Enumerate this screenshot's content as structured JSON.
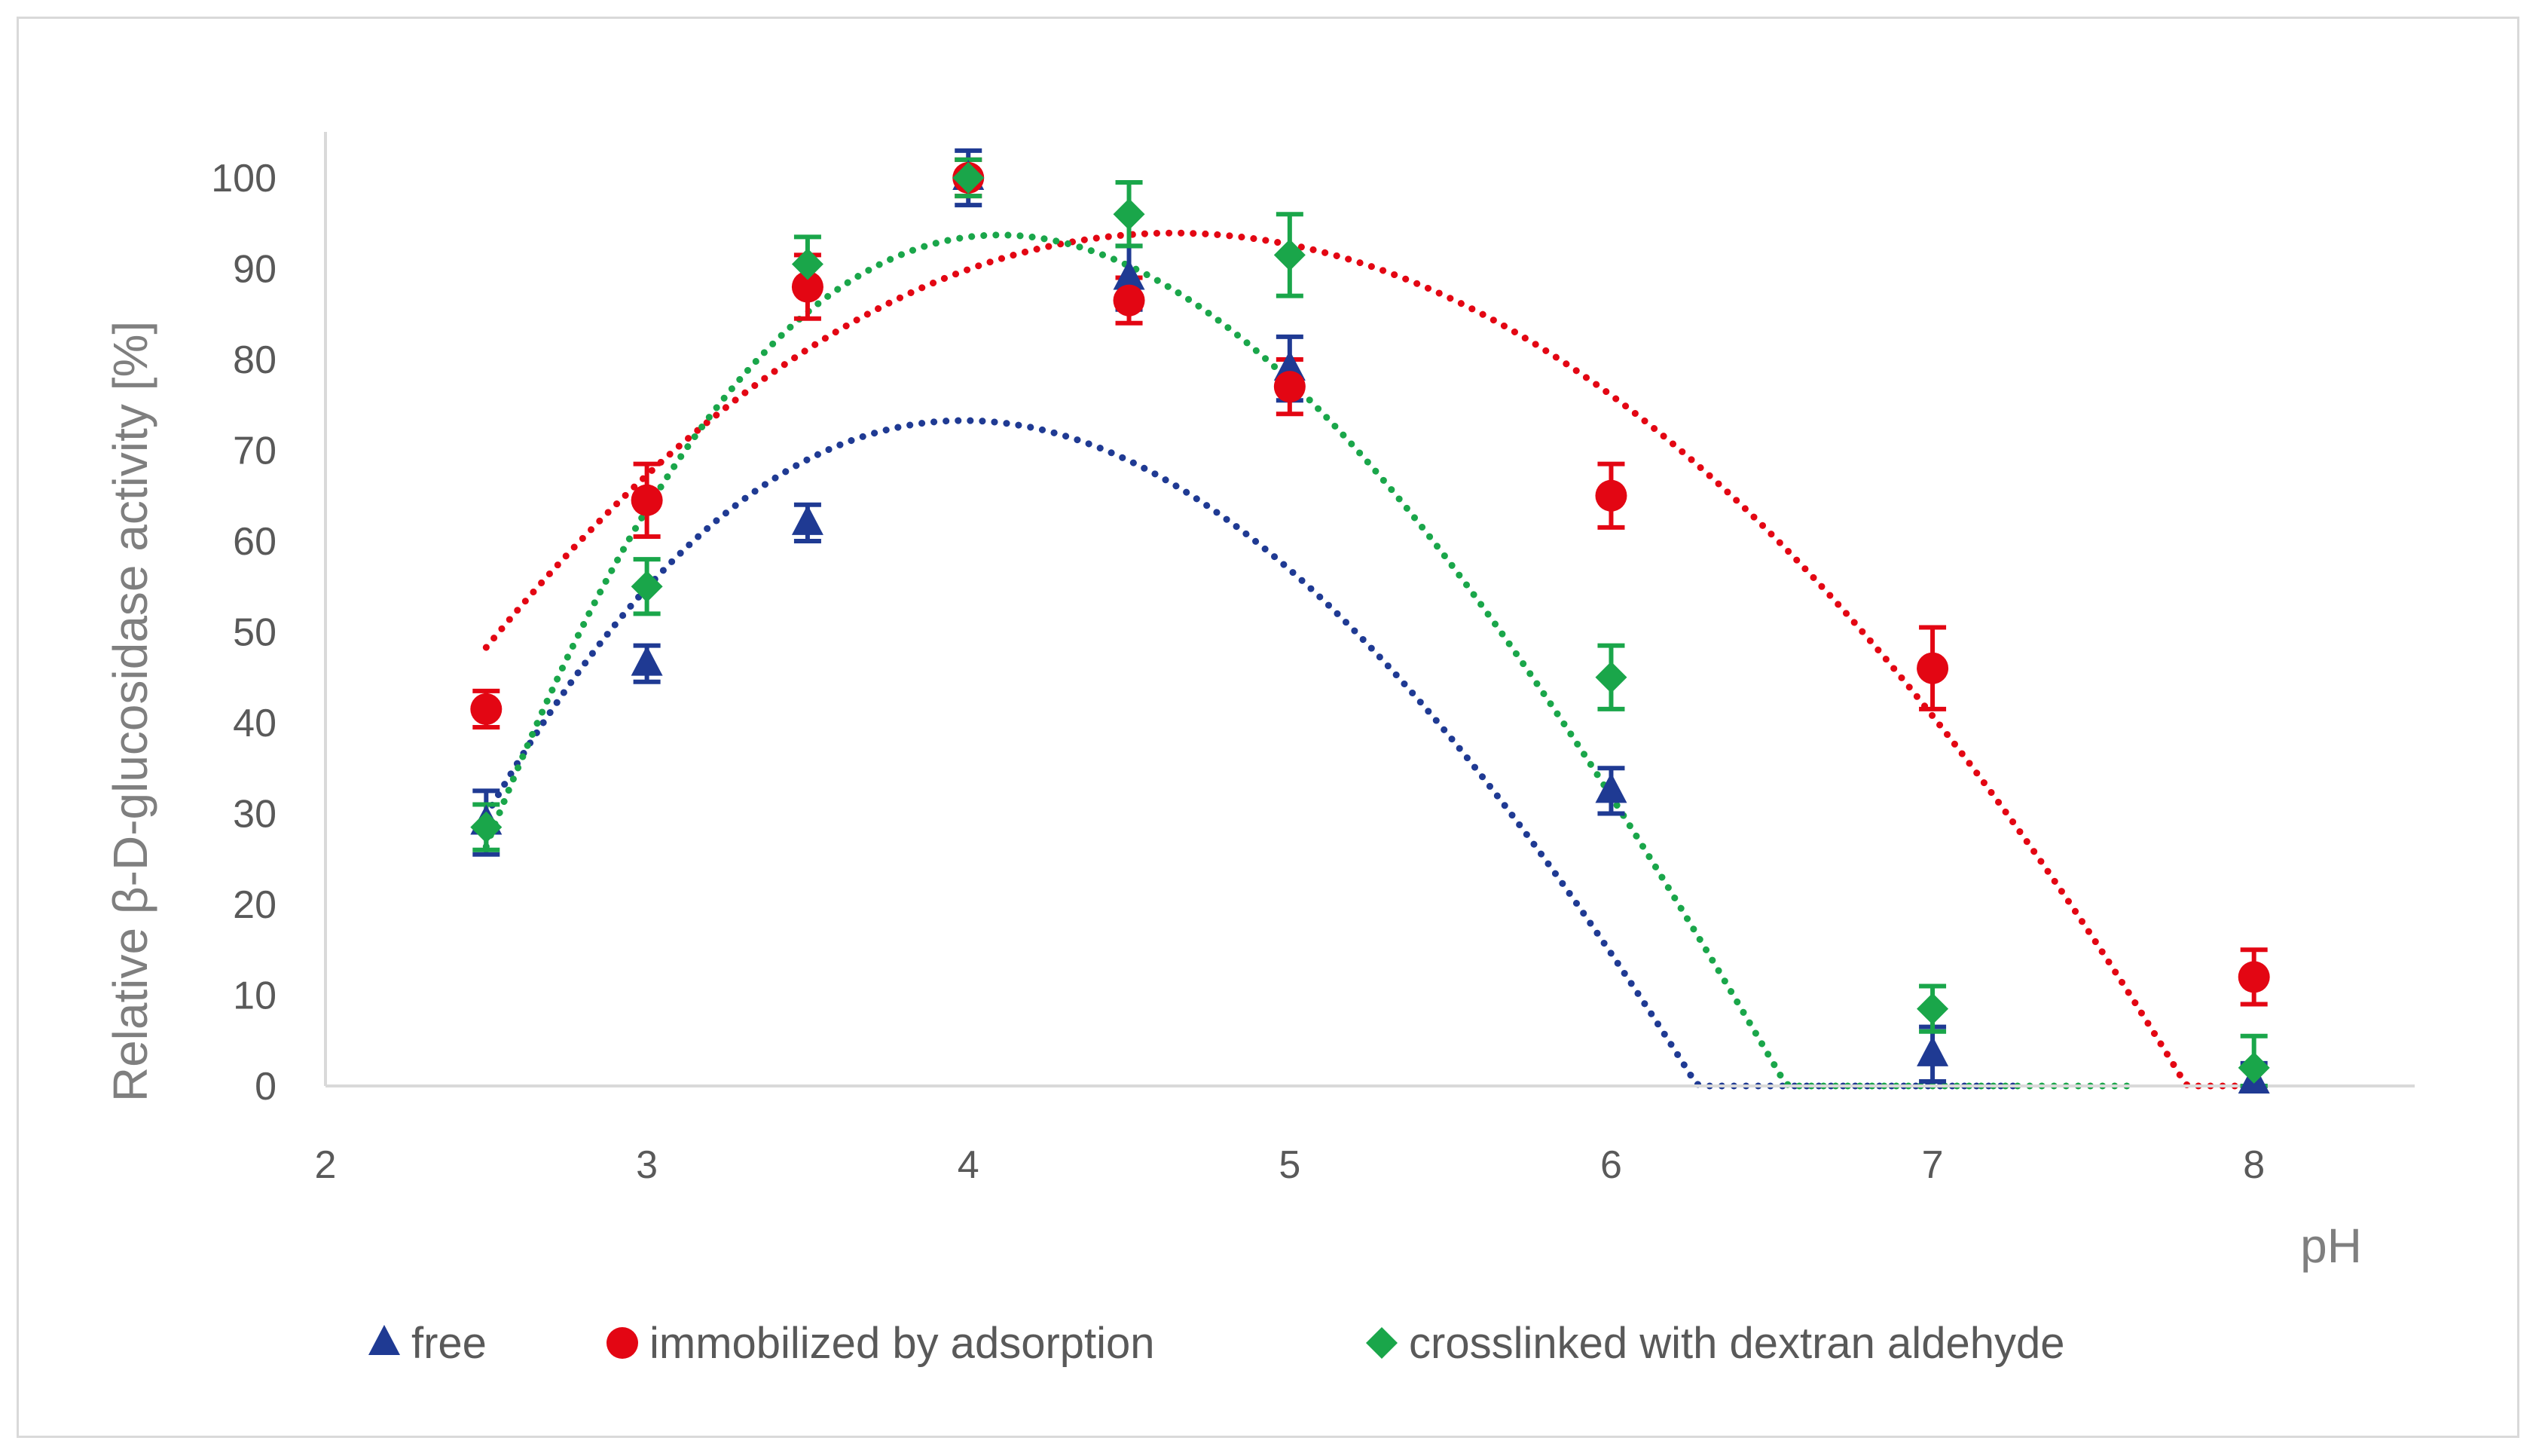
{
  "chart_data": {
    "type": "scatter",
    "title": "",
    "xlabel": "pH",
    "ylabel": "Relative β-D-glucosidase activity [%]",
    "xlim": [
      2,
      8.5
    ],
    "ylim": [
      0,
      100
    ],
    "xticks": [
      2,
      3,
      4,
      5,
      6,
      7,
      8
    ],
    "yticks": [
      0,
      10,
      20,
      30,
      40,
      50,
      60,
      70,
      80,
      90,
      100
    ],
    "x_tick_labels": [
      "2",
      "3",
      "4",
      "5",
      "6",
      "7",
      "8"
    ],
    "y_tick_labels": [
      "0",
      "10",
      "20",
      "30",
      "40",
      "50",
      "60",
      "70",
      "80",
      "90",
      "100"
    ],
    "grid": false,
    "legend_position": "bottom",
    "series": [
      {
        "name": "free",
        "color": "#1f3a93",
        "marker": "triangle",
        "x": [
          2.5,
          3,
          3.5,
          4,
          4.5,
          5,
          6,
          7,
          8
        ],
        "y": [
          29,
          46.5,
          62,
          100,
          89,
          79,
          32.5,
          3.5,
          0.5
        ],
        "err": [
          3.5,
          2,
          2,
          3,
          3.5,
          3.5,
          2.5,
          3,
          2
        ],
        "trend": {
          "type": "poly3",
          "coeffs": [
            -299.45,
            210.86,
            -35.42,
            1.5
          ],
          "x_start": 2.5,
          "x_end": 7.28
        }
      },
      {
        "name": "immobilized by adsorption",
        "color": "#e30613",
        "marker": "circle",
        "x": [
          2.5,
          3,
          3.5,
          4,
          4.5,
          5,
          6,
          7,
          8
        ],
        "y": [
          41.5,
          64.5,
          88,
          100,
          86.5,
          77,
          65,
          46,
          12
        ],
        "err": [
          2,
          4,
          3.5,
          2,
          2.5,
          3,
          3.5,
          4.5,
          3
        ],
        "trend": {
          "type": "poly3",
          "coeffs": [
            -126.2,
            97.07,
            -11.16,
            0.1
          ],
          "x_start": 2.5,
          "x_end": 8.0
        }
      },
      {
        "name": "crosslinked with dextran aldehyde",
        "color": "#1aa64a",
        "marker": "diamond",
        "x": [
          2.5,
          3,
          3.5,
          4,
          4.5,
          5,
          6,
          7,
          8
        ],
        "y": [
          28.5,
          55,
          90.5,
          100,
          96,
          91.5,
          45,
          8.5,
          2
        ],
        "err": [
          2.5,
          3,
          3,
          2,
          3.5,
          4.5,
          3.5,
          2.5,
          3.5
        ],
        "trend": {
          "type": "poly3",
          "coeffs": [
            -460.39,
            314.91,
            -54.71,
            2.65
          ],
          "x_start": 2.5,
          "x_end": 7.62
        }
      }
    ]
  }
}
